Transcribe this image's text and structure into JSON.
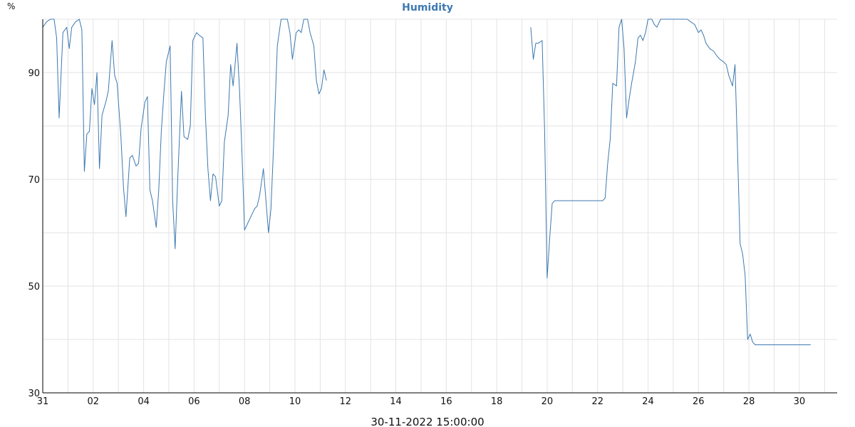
{
  "header": {
    "unit": "%",
    "title": "Humidity"
  },
  "footer": {
    "timestamp": "30-11-2022 15:00:00"
  },
  "colors": {
    "title": "#3d79b0",
    "series": "#3d79b0"
  },
  "chart_data": {
    "type": "line",
    "title": "Humidity",
    "ylabel": "%",
    "xlabel": "",
    "xlim": [
      0,
      31.5
    ],
    "ylim": [
      30,
      100
    ],
    "grid": true,
    "x_ticks": [
      {
        "x": 0,
        "label": "31"
      },
      {
        "x": 2,
        "label": "02"
      },
      {
        "x": 4,
        "label": "04"
      },
      {
        "x": 6,
        "label": "06"
      },
      {
        "x": 8,
        "label": "08"
      },
      {
        "x": 10,
        "label": "10"
      },
      {
        "x": 12,
        "label": "12"
      },
      {
        "x": 14,
        "label": "14"
      },
      {
        "x": 16,
        "label": "16"
      },
      {
        "x": 18,
        "label": "18"
      },
      {
        "x": 20,
        "label": "20"
      },
      {
        "x": 22,
        "label": "22"
      },
      {
        "x": 24,
        "label": "24"
      },
      {
        "x": 26,
        "label": "26"
      },
      {
        "x": 28,
        "label": "28"
      },
      {
        "x": 30,
        "label": "30"
      }
    ],
    "y_ticks": [
      {
        "y": 30,
        "label": "30"
      },
      {
        "y": 50,
        "label": "50"
      },
      {
        "y": 70,
        "label": "70"
      },
      {
        "y": 90,
        "label": "90"
      }
    ],
    "series": [
      {
        "segments": [
          [
            [
              0.0,
              98.5
            ],
            [
              0.15,
              99.5
            ],
            [
              0.3,
              100
            ],
            [
              0.45,
              100
            ],
            [
              0.55,
              96.5
            ],
            [
              0.65,
              81.5
            ],
            [
              0.8,
              97.5
            ],
            [
              0.95,
              98.5
            ],
            [
              1.05,
              94.5
            ],
            [
              1.15,
              98.5
            ],
            [
              1.3,
              99.5
            ],
            [
              1.45,
              100
            ],
            [
              1.55,
              98
            ],
            [
              1.65,
              71.5
            ],
            [
              1.75,
              78.5
            ],
            [
              1.85,
              79
            ],
            [
              1.95,
              87
            ],
            [
              2.05,
              84
            ],
            [
              2.15,
              90
            ],
            [
              2.25,
              72
            ],
            [
              2.35,
              82
            ],
            [
              2.5,
              84.5
            ],
            [
              2.6,
              86.5
            ],
            [
              2.75,
              96
            ],
            [
              2.85,
              89.5
            ],
            [
              2.95,
              88
            ],
            [
              3.1,
              78
            ],
            [
              3.2,
              68.5
            ],
            [
              3.3,
              63
            ],
            [
              3.45,
              74
            ],
            [
              3.55,
              74.5
            ],
            [
              3.7,
              72.5
            ],
            [
              3.8,
              73
            ],
            [
              3.9,
              79.5
            ],
            [
              4.05,
              84.5
            ],
            [
              4.15,
              85.5
            ],
            [
              4.25,
              68
            ],
            [
              4.35,
              66
            ],
            [
              4.5,
              61
            ],
            [
              4.6,
              68
            ],
            [
              4.7,
              79
            ],
            [
              4.8,
              86
            ],
            [
              4.9,
              92
            ],
            [
              5.05,
              95
            ],
            [
              5.15,
              66
            ],
            [
              5.25,
              57
            ],
            [
              5.35,
              70
            ],
            [
              5.5,
              86.5
            ],
            [
              5.6,
              78
            ],
            [
              5.75,
              77.5
            ],
            [
              5.85,
              80
            ],
            [
              5.95,
              96
            ],
            [
              6.1,
              97.5
            ],
            [
              6.2,
              97
            ],
            [
              6.35,
              96.5
            ],
            [
              6.45,
              82
            ],
            [
              6.55,
              72
            ],
            [
              6.65,
              66
            ],
            [
              6.75,
              71
            ],
            [
              6.85,
              70.5
            ],
            [
              7.0,
              65
            ],
            [
              7.1,
              66
            ],
            [
              7.2,
              77
            ],
            [
              7.35,
              82
            ],
            [
              7.45,
              91.5
            ],
            [
              7.55,
              87.5
            ],
            [
              7.7,
              95.5
            ],
            [
              7.8,
              87
            ],
            [
              7.9,
              75
            ],
            [
              8.0,
              60.5
            ],
            [
              8.15,
              62
            ],
            [
              8.3,
              63.5
            ],
            [
              8.4,
              64.5
            ],
            [
              8.5,
              65
            ],
            [
              8.6,
              67
            ],
            [
              8.75,
              72
            ],
            [
              8.85,
              66
            ],
            [
              8.95,
              60
            ],
            [
              9.05,
              64.5
            ],
            [
              9.15,
              76
            ],
            [
              9.3,
              95
            ],
            [
              9.45,
              100
            ],
            [
              9.6,
              100
            ],
            [
              9.7,
              100
            ],
            [
              9.8,
              97.5
            ],
            [
              9.9,
              92.5
            ],
            [
              10.05,
              97.5
            ],
            [
              10.15,
              98
            ],
            [
              10.25,
              97.5
            ],
            [
              10.35,
              100
            ],
            [
              10.5,
              100
            ],
            [
              10.6,
              97.5
            ],
            [
              10.75,
              95
            ],
            [
              10.85,
              88.5
            ],
            [
              10.95,
              86
            ],
            [
              11.05,
              87
            ],
            [
              11.15,
              90.5
            ],
            [
              11.25,
              88.5
            ]
          ],
          [
            [
              19.35,
              98.5
            ],
            [
              19.45,
              92.5
            ],
            [
              19.55,
              95.5
            ],
            [
              19.65,
              95.5
            ],
            [
              19.8,
              96
            ],
            [
              19.9,
              79
            ],
            [
              20.0,
              51.5
            ],
            [
              20.1,
              59
            ],
            [
              20.2,
              65.5
            ],
            [
              20.3,
              66
            ],
            [
              20.45,
              66
            ],
            [
              20.6,
              66
            ],
            [
              20.8,
              66
            ],
            [
              21.0,
              66
            ],
            [
              21.2,
              66
            ],
            [
              21.4,
              66
            ],
            [
              21.6,
              66
            ],
            [
              21.8,
              66
            ],
            [
              22.0,
              66
            ],
            [
              22.2,
              66
            ],
            [
              22.3,
              66.5
            ],
            [
              22.4,
              73
            ],
            [
              22.5,
              77.5
            ],
            [
              22.6,
              88
            ],
            [
              22.75,
              87.5
            ],
            [
              22.85,
              98.5
            ],
            [
              22.95,
              100
            ],
            [
              23.05,
              94.5
            ],
            [
              23.15,
              81.5
            ],
            [
              23.25,
              85
            ],
            [
              23.35,
              88
            ],
            [
              23.5,
              92
            ],
            [
              23.6,
              96.5
            ],
            [
              23.7,
              97
            ],
            [
              23.8,
              96
            ],
            [
              23.9,
              97.5
            ],
            [
              24.0,
              100
            ],
            [
              24.15,
              100
            ],
            [
              24.25,
              99
            ],
            [
              24.35,
              98.5
            ],
            [
              24.5,
              100
            ],
            [
              24.6,
              100
            ],
            [
              24.8,
              100
            ],
            [
              25.0,
              100
            ],
            [
              25.2,
              100
            ],
            [
              25.4,
              100
            ],
            [
              25.55,
              100
            ],
            [
              25.7,
              99.5
            ],
            [
              25.85,
              99
            ],
            [
              26.0,
              97.5
            ],
            [
              26.1,
              98
            ],
            [
              26.2,
              97
            ],
            [
              26.3,
              95.5
            ],
            [
              26.45,
              94.5
            ],
            [
              26.6,
              94
            ],
            [
              26.75,
              93
            ],
            [
              26.85,
              92.5
            ],
            [
              27.0,
              92
            ],
            [
              27.1,
              91.5
            ],
            [
              27.2,
              89.5
            ],
            [
              27.35,
              87.5
            ],
            [
              27.45,
              91.5
            ],
            [
              27.55,
              75
            ],
            [
              27.65,
              58
            ],
            [
              27.75,
              56
            ],
            [
              27.85,
              52
            ],
            [
              27.95,
              40
            ],
            [
              28.05,
              41
            ],
            [
              28.15,
              39.5
            ],
            [
              28.25,
              39
            ],
            [
              28.5,
              39
            ],
            [
              28.75,
              39
            ],
            [
              29.0,
              39
            ],
            [
              29.25,
              39
            ],
            [
              29.5,
              39
            ],
            [
              29.75,
              39
            ],
            [
              30.0,
              39
            ],
            [
              30.25,
              39
            ],
            [
              30.45,
              39
            ]
          ]
        ]
      }
    ]
  }
}
